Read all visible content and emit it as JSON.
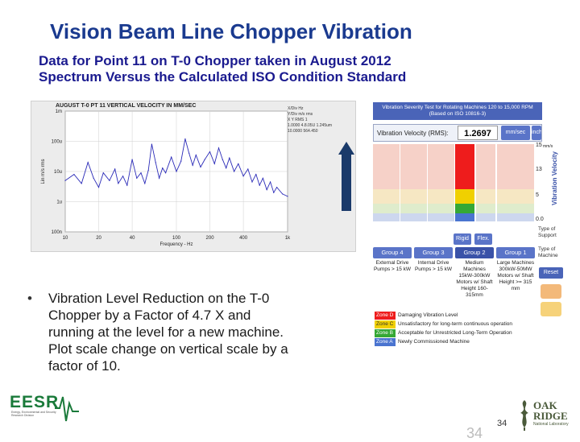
{
  "slide": {
    "title": "Vision Beam Line Chopper Vibration",
    "subtitle_line1": "Data for Point 11 on T-0 Chopper taken in August 2012",
    "subtitle_line2": "Spectrum Versus the Calculated ISO Condition Standard",
    "bullet_symbol": "•",
    "bullet_text": "Vibration Level Reduction on the T-0 Chopper by a Factor of 4.7 X and running at the level for a new machine. Plot scale change on vertical scale by a factor of 10.",
    "page_number": "34",
    "page_number_shadow": "34"
  },
  "spectrum_plot": {
    "title": "AUGUST T-0 PT 11 VERTICAL VELOCITY IN MM/SEC",
    "legend_lines": [
      "X/Div      Hz",
      "Y/Div      m/s rms",
      "X            Y           RMS 1",
      "1.0000   4.8.05U   1.245um",
      "10.0000   564.450"
    ],
    "y_label": "Lin m/s rms",
    "x_label": "Frequency - Hz",
    "y_ticks": [
      "1m",
      "100u",
      "10u",
      "1u",
      "100n"
    ],
    "x_ticks": [
      "10",
      "20",
      "40",
      "100",
      "200",
      "400",
      "1k"
    ]
  },
  "chart_data": {
    "type": "line",
    "title": "AUGUST T-0 PT 11 VERTICAL VELOCITY IN MM/SEC",
    "xlabel": "Frequency - Hz",
    "ylabel": "Lin m/s rms",
    "x_scale": "log",
    "y_scale": "log",
    "xlim": [
      10,
      1000
    ],
    "ylim": [
      1e-07,
      0.001
    ],
    "series": [
      {
        "x": [
          10,
          12,
          14,
          16,
          18,
          20,
          22,
          25,
          28,
          30,
          33,
          36,
          40,
          44,
          48,
          52,
          56,
          60,
          65,
          70,
          75,
          80,
          90,
          100,
          110,
          120,
          130,
          140,
          150,
          165,
          180,
          200,
          220,
          240,
          260,
          280,
          300,
          330,
          360,
          400,
          440,
          480,
          520,
          560,
          600,
          650,
          700,
          750,
          800,
          900,
          1000
        ],
        "y": [
          5e-06,
          8e-06,
          4e-06,
          2e-05,
          6e-06,
          3e-06,
          9e-06,
          5e-06,
          1.2e-05,
          4e-06,
          7e-06,
          3.5e-06,
          2.5e-05,
          6e-06,
          9e-06,
          4e-06,
          1.1e-05,
          8e-05,
          2e-05,
          6e-06,
          1.3e-05,
          9e-06,
          3e-05,
          1e-05,
          2.2e-05,
          0.00012,
          4e-05,
          1.6e-05,
          3.5e-05,
          1.4e-05,
          2.5e-05,
          4.5e-05,
          1.8e-05,
          6e-05,
          2.5e-05,
          1.3e-05,
          2.8e-05,
          1e-05,
          1.8e-05,
          7e-06,
          1.2e-05,
          4.5e-06,
          8e-06,
          3.5e-06,
          6e-06,
          2.5e-06,
          4.5e-06,
          2e-06,
          3e-06,
          1.8e-06,
          1.5e-06
        ]
      }
    ]
  },
  "iso_panel": {
    "header": "Vibration Severity Test for Rotating Machines 120 to 15,000 RPM (Based on ISO 10816-3)",
    "vv_label": "Vibration Velocity (RMS):",
    "vv_value": "1.2697",
    "unit_mm": "mm/sec",
    "unit_inch": "inch/sec",
    "axis_values": [
      "15",
      "13",
      "5",
      "0.0"
    ],
    "axis_unit": "mm/s",
    "axis_title": "Vibration Velocity",
    "support_rigid": "Rigid",
    "support_flex": "Flex.",
    "type_of_support": "Type of Support",
    "type_of_machine": "Type of Machine",
    "groups": [
      "Group 4",
      "Group 3",
      "Group 2",
      "Group 1"
    ],
    "group_desc": [
      "External Drive Pumps > 15 kW",
      "Internal Drive Pumps > 15 kW",
      "Medium Machines 15kW-300kW Motors w/ Shaft Height 160-315mm",
      "Large Machines 300kW-50MW Motors w/ Shaft Height >= 315 mm"
    ],
    "reset_label": "Reset",
    "legend": [
      {
        "zone": "Zone D",
        "text": "Damaging Vibration Level",
        "color": "#ee1c1c"
      },
      {
        "zone": "Zone C",
        "text": "Unsatisfactory for long-term continuous operation",
        "color": "#f0d000"
      },
      {
        "zone": "Zone B",
        "text": "Acceptable for Unrestricted Long-Term Operation",
        "color": "#35a835"
      },
      {
        "zone": "Zone A",
        "text": "Newly Commissioned Machine",
        "color": "#4a74d0"
      }
    ]
  },
  "logos": {
    "eesr": "EESR",
    "eesr_sub": "Energy, Environmental and Security Research Division",
    "ornl_oak": "OAK",
    "ornl_ridge": "RIDGE",
    "ornl_lab": "National Laboratory"
  }
}
